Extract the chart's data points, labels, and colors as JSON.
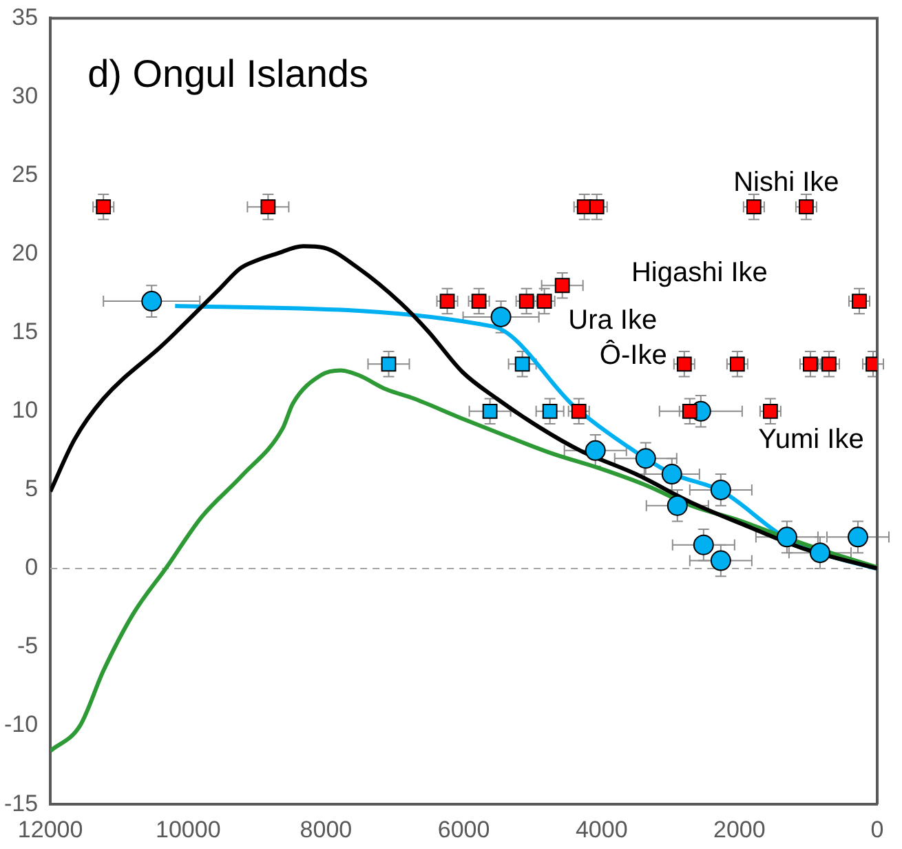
{
  "chart_data": {
    "type": "scatter",
    "title": "d) Ongul Islands",
    "xlim": [
      12000,
      0
    ],
    "xticks": [
      12000,
      10000,
      8000,
      6000,
      4000,
      2000,
      0
    ],
    "ylim": [
      -15,
      35
    ],
    "yticks": [
      -15,
      -10,
      -5,
      0,
      5,
      10,
      15,
      20,
      25,
      30,
      35
    ],
    "grid": false,
    "legend": false,
    "ref_lines": [
      {
        "axis": "y",
        "value": 0,
        "color": "#a6a6a6",
        "line_style": "dashed"
      }
    ],
    "annotations": [
      "Nishi Ike",
      "Higashi Ike",
      "Ura Ike",
      "Ô-Ike",
      "Yumi Ike"
    ],
    "series": [
      {
        "type": "line",
        "color": "#000000",
        "marker": "none",
        "line_style": "solid",
        "x": [
          12000,
          11650,
          11230,
          10350,
          9540,
          9240,
          9000,
          8730,
          8330,
          8030,
          7530,
          6920,
          6520,
          6020,
          5520,
          4910,
          4310,
          3500,
          2700,
          1890,
          1090,
          0
        ],
        "values": [
          4.9,
          8.2,
          10.8,
          14.3,
          17.8,
          19.1,
          19.6,
          20.0,
          20.5,
          20.4,
          19.1,
          16.9,
          15.1,
          12.5,
          10.8,
          9.0,
          7.5,
          6.0,
          4.2,
          2.7,
          1.3,
          0
        ]
      },
      {
        "type": "line",
        "color": "#2e9a35",
        "marker": "none",
        "line_style": "solid",
        "x": [
          12000,
          11570,
          11230,
          10800,
          10310,
          9800,
          9220,
          8630,
          8480,
          8070,
          7790,
          7530,
          7130,
          6720,
          6060,
          5370,
          4710,
          4050,
          3360,
          2700,
          2030,
          1350,
          680,
          20
        ],
        "values": [
          -11.6,
          -10,
          -6.5,
          -2.9,
          0.1,
          3.3,
          5.9,
          8.9,
          10.5,
          12.3,
          12.6,
          12.3,
          11.4,
          10.8,
          9.6,
          8.4,
          7.3,
          6.4,
          5.3,
          4.0,
          3.1,
          2.0,
          1.0,
          0.1
        ]
      },
      {
        "type": "line",
        "color": "#00b0f0",
        "marker": "none",
        "line_style": "solid",
        "x": [
          10190,
          5580,
          4370,
          3360,
          2960,
          2250,
          1350,
          830,
          20
        ],
        "values": [
          16.7,
          15.4,
          10.2,
          7,
          6,
          4.9,
          2,
          1,
          0
        ]
      },
      {
        "type": "scatter",
        "color": "#ff0000",
        "marker": "square",
        "x": [
          11230,
          8840,
          4250,
          4070,
          1790,
          1030,
          6240,
          5780,
          5090,
          4830,
          4570,
          260,
          2800,
          2030,
          970,
          700,
          60,
          4330,
          2720,
          1550
        ],
        "values": [
          23,
          23,
          23,
          23,
          23,
          23,
          17,
          17,
          17,
          17,
          18,
          17,
          13,
          13,
          13,
          13,
          13,
          10,
          10,
          10
        ],
        "errors": [
          0.8,
          0.8,
          0.8,
          0.8,
          0.8,
          0.8,
          0.8,
          0.8,
          0.8,
          0.8,
          0.8,
          0.8,
          0.8,
          0.8,
          0.8,
          0.8,
          0.8,
          0.8,
          0.8,
          0.8
        ],
        "xerrors": [
          150,
          300,
          150,
          150,
          150,
          150,
          150,
          150,
          150,
          150,
          300,
          150,
          150,
          150,
          150,
          150,
          150,
          150,
          150,
          150
        ]
      },
      {
        "type": "scatter",
        "color": "#00b0f0",
        "marker": "square",
        "x": [
          7090,
          5150,
          5620,
          4750
        ],
        "values": [
          13,
          13,
          10,
          10
        ],
        "errors": [
          0.8,
          0.8,
          0.8,
          0.8
        ],
        "xerrors": [
          300,
          200,
          300,
          200
        ]
      },
      {
        "type": "scatter",
        "color": "#00b0f0",
        "marker": "circle",
        "x": [
          10530,
          5460,
          2560,
          4090,
          3360,
          2980,
          2270,
          2900,
          2520,
          2270,
          1310,
          830,
          280
        ],
        "values": [
          17,
          16,
          10,
          7.5,
          7,
          6,
          5,
          4,
          1.5,
          0.5,
          2,
          1,
          2
        ],
        "errors": [
          1,
          1,
          1,
          1,
          1,
          1,
          1,
          1,
          1,
          1,
          1,
          1,
          1
        ],
        "xerrors": [
          700,
          550,
          600,
          450,
          450,
          400,
          450,
          450,
          450,
          450,
          450,
          450,
          450
        ]
      }
    ]
  }
}
